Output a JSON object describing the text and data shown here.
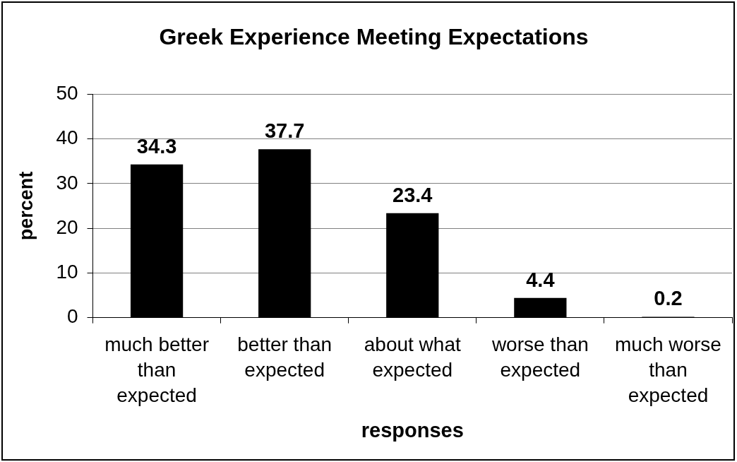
{
  "chart_data": {
    "type": "bar",
    "title": "Greek Experience Meeting Expectations",
    "xlabel": "responses",
    "ylabel": "percent",
    "categories": [
      "much better than expected",
      "better than expected",
      "about what expected",
      "worse than expected",
      "much worse than expected"
    ],
    "values": [
      34.3,
      37.7,
      23.4,
      4.4,
      0.2
    ],
    "color": "#000000",
    "ylim": [
      0,
      50
    ],
    "yticks": [
      0,
      10,
      20,
      30,
      40,
      50
    ],
    "grid": "y",
    "data_labels": true
  }
}
